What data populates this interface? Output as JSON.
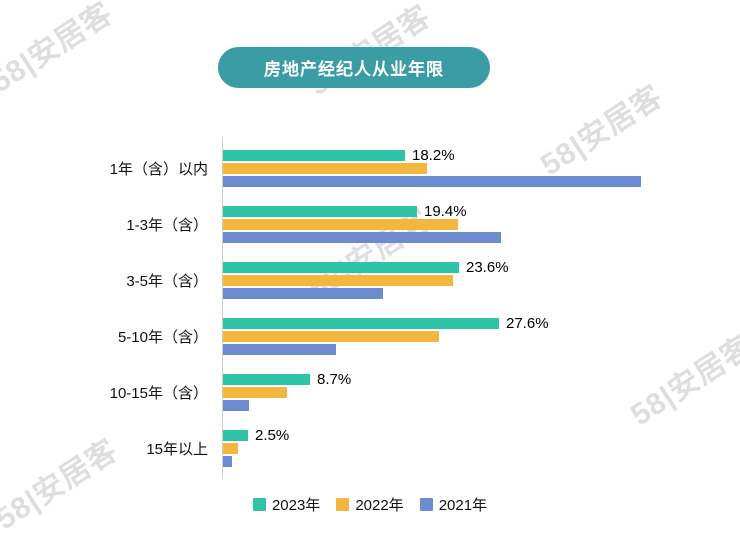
{
  "title": "房地产经纪人从业年限",
  "watermark": {
    "text": "58|安居客"
  },
  "colors": {
    "title_bg": "#3B9CA6",
    "series_2023": "#2EC4A5",
    "series_2022": "#F3B63F",
    "series_2021": "#6D8CCF",
    "axis_line": "#CFCFCF"
  },
  "chart_data": {
    "type": "bar",
    "orientation": "horizontal",
    "title": "房地产经纪人从业年限",
    "categories": [
      "1年（含）以内",
      "1-3年（含）",
      "3-5年（含）",
      "5-10年（含）",
      "10-15年（含）",
      "15年以上"
    ],
    "series": [
      {
        "name": "2023年",
        "color": "#2EC4A5",
        "values": [
          18.2,
          19.4,
          23.6,
          27.6,
          8.7,
          2.5
        ],
        "data_labels": [
          "18.2%",
          "19.4%",
          "23.6%",
          "27.6%",
          "8.7%",
          "2.5%"
        ]
      },
      {
        "name": "2022年",
        "color": "#F3B63F",
        "values": [
          20.4,
          23.5,
          23.0,
          21.6,
          6.4,
          1.5
        ]
      },
      {
        "name": "2021年",
        "color": "#6D8CCF",
        "values": [
          41.8,
          27.8,
          16.0,
          11.3,
          2.6,
          0.9
        ]
      }
    ],
    "value_unit": "%",
    "xlim": [
      0,
      45
    ],
    "legend_position": "bottom"
  },
  "legend": {
    "items": [
      "2023年",
      "2022年",
      "2021年"
    ]
  }
}
